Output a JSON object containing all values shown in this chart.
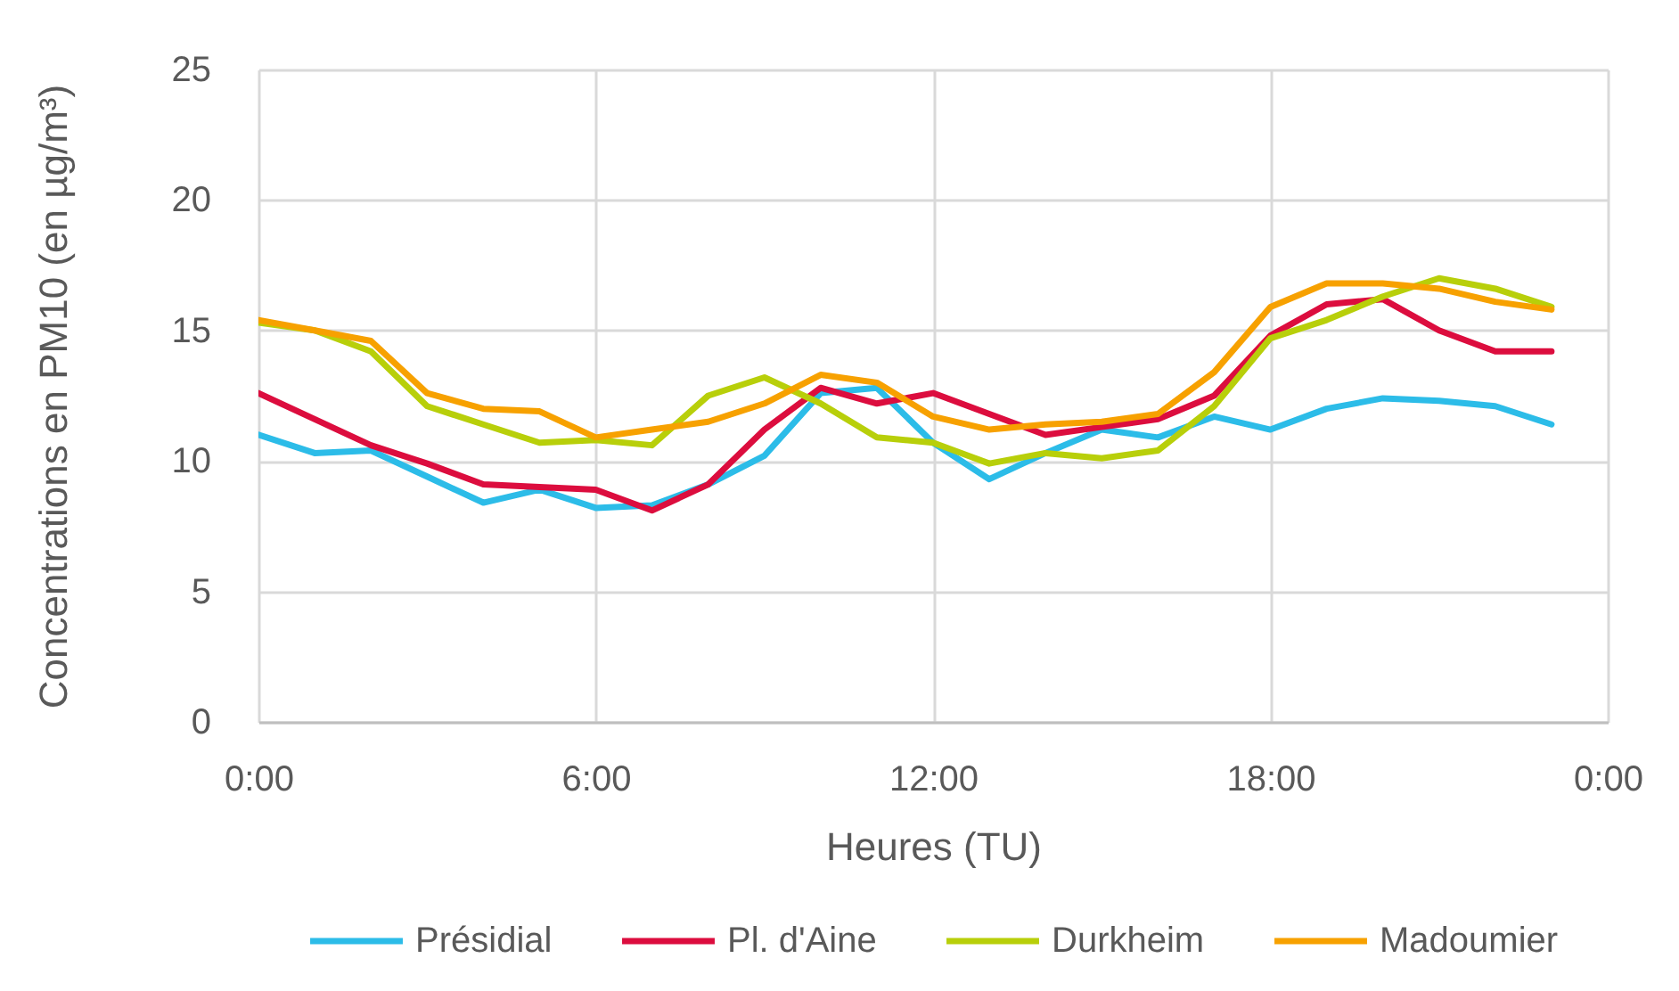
{
  "chart_data": {
    "type": "line",
    "xlabel": "Heures (TU)",
    "ylabel": "Concentrations en PM10 (en µg/m³)",
    "x": [
      0,
      1,
      2,
      3,
      4,
      5,
      6,
      7,
      8,
      9,
      10,
      11,
      12,
      13,
      14,
      15,
      16,
      17,
      18,
      19,
      20,
      21,
      22,
      23
    ],
    "xlim": [
      0,
      24
    ],
    "xticks": [
      {
        "value": 0,
        "label": "0:00"
      },
      {
        "value": 6,
        "label": "6:00"
      },
      {
        "value": 12,
        "label": "12:00"
      },
      {
        "value": 18,
        "label": "18:00"
      },
      {
        "value": 24,
        "label": "0:00"
      }
    ],
    "ylim": [
      0,
      25
    ],
    "yticks": [
      0,
      5,
      10,
      15,
      20,
      25
    ],
    "grid": true,
    "legend": "bottom",
    "series": [
      {
        "name": "Présidial",
        "color": "#2cbce8",
        "values": [
          11.0,
          10.3,
          10.4,
          9.4,
          8.4,
          8.9,
          8.2,
          8.3,
          9.1,
          10.2,
          12.6,
          12.8,
          10.7,
          9.3,
          10.3,
          11.2,
          10.9,
          11.7,
          11.2,
          12.0,
          12.4,
          12.3,
          12.1,
          11.4
        ]
      },
      {
        "name": "Pl. d'Aine",
        "color": "#dc0d3e",
        "values": [
          12.6,
          11.6,
          10.6,
          9.9,
          9.1,
          9.0,
          8.9,
          8.1,
          9.1,
          11.2,
          12.8,
          12.2,
          12.6,
          11.8,
          11.0,
          11.3,
          11.6,
          12.5,
          14.8,
          16.0,
          16.2,
          15.0,
          14.2,
          14.2
        ]
      },
      {
        "name": "Durkheim",
        "color": "#b8cf0a",
        "values": [
          15.3,
          15.0,
          14.2,
          12.1,
          11.4,
          10.7,
          10.8,
          10.6,
          12.5,
          13.2,
          12.2,
          10.9,
          10.7,
          9.9,
          10.3,
          10.1,
          10.4,
          12.1,
          14.7,
          15.4,
          16.3,
          17.0,
          16.6,
          15.9
        ]
      },
      {
        "name": "Madoumier",
        "color": "#f7a100",
        "values": [
          15.4,
          15.0,
          14.6,
          12.6,
          12.0,
          11.9,
          10.9,
          11.2,
          11.5,
          12.2,
          13.3,
          13.0,
          11.7,
          11.2,
          11.4,
          11.5,
          11.8,
          13.4,
          15.9,
          16.8,
          16.8,
          16.6,
          16.1,
          15.8
        ]
      }
    ]
  }
}
